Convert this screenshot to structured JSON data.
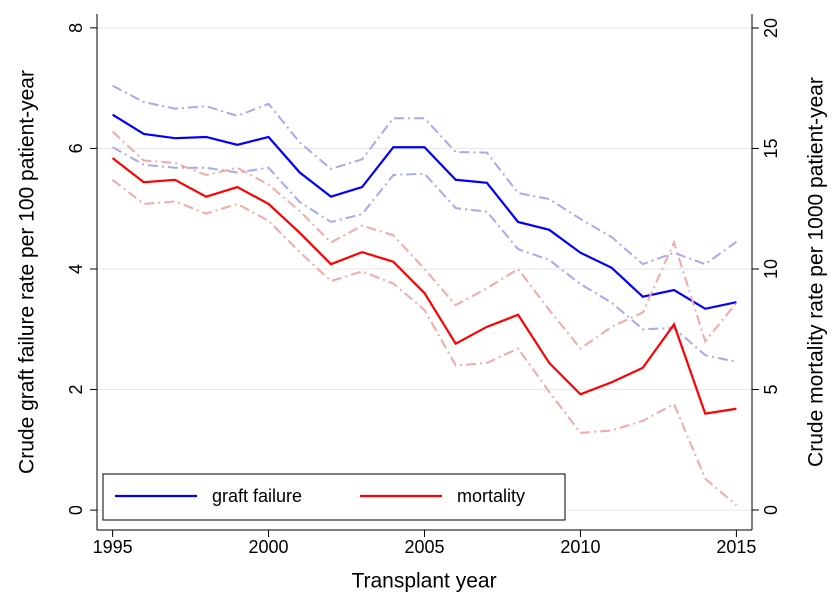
{
  "chart_data": {
    "type": "line",
    "x_label": "Transplant year",
    "y_label": "Crude graft failure rate per 100 patient-year",
    "y2_label": "Crude mortality rate per 1000 patient-year",
    "x": [
      1995,
      1996,
      1997,
      1998,
      1999,
      2000,
      2001,
      2002,
      2003,
      2004,
      2005,
      2006,
      2007,
      2008,
      2009,
      2010,
      2011,
      2012,
      2013,
      2014,
      2015
    ],
    "xlim": [
      1994.5,
      2015.5
    ],
    "xticks": [
      1995,
      2000,
      2005,
      2010,
      2015
    ],
    "ylim": [
      -0.33,
      8.23
    ],
    "yticks": [
      0,
      2,
      4,
      6,
      8
    ],
    "y2lim": [
      -0.83,
      20.58
    ],
    "y2ticks": [
      0,
      5,
      10,
      15,
      20
    ],
    "grid": true,
    "legend": "bottom-left",
    "series": [
      {
        "name": "graft failure",
        "color": "#0000ff",
        "ci_color": "#a8a8f4",
        "axis": "y",
        "values": [
          6.56,
          6.24,
          6.17,
          6.19,
          6.06,
          6.19,
          5.6,
          5.2,
          5.36,
          6.02,
          6.02,
          5.48,
          5.43,
          4.78,
          4.65,
          4.27,
          4.02,
          3.54,
          3.65,
          3.34,
          3.45
        ],
        "ci_upper": [
          7.04,
          6.77,
          6.66,
          6.7,
          6.54,
          6.74,
          6.1,
          5.66,
          5.82,
          6.5,
          6.5,
          5.94,
          5.93,
          5.26,
          5.16,
          4.83,
          4.53,
          4.08,
          4.27,
          4.08,
          4.45
        ],
        "ci_lower": [
          6.02,
          5.73,
          5.68,
          5.68,
          5.6,
          5.68,
          5.11,
          4.78,
          4.91,
          5.56,
          5.58,
          5.01,
          4.95,
          4.33,
          4.15,
          3.75,
          3.44,
          3.0,
          3.02,
          2.57,
          2.46
        ]
      },
      {
        "name": "mortality",
        "color": "#ff0000",
        "ci_color": "#f4a8a8",
        "axis": "y2",
        "values": [
          14.6,
          13.6,
          13.7,
          13.0,
          13.4,
          12.7,
          11.5,
          10.2,
          10.7,
          10.3,
          9.0,
          6.9,
          7.6,
          8.1,
          6.1,
          4.8,
          5.3,
          5.9,
          7.7,
          4.0,
          4.2
        ],
        "ci_upper": [
          15.7,
          14.5,
          14.4,
          13.9,
          14.2,
          13.5,
          12.4,
          11.1,
          11.8,
          11.4,
          10.0,
          8.5,
          9.2,
          10.0,
          8.3,
          6.7,
          7.6,
          8.2,
          11.1,
          7.0,
          8.6
        ],
        "ci_lower": [
          13.7,
          12.7,
          12.8,
          12.3,
          12.7,
          12.0,
          10.7,
          9.5,
          9.9,
          9.4,
          8.3,
          6.0,
          6.1,
          6.7,
          4.9,
          3.2,
          3.3,
          3.7,
          4.4,
          1.3,
          0.2
        ]
      }
    ]
  }
}
